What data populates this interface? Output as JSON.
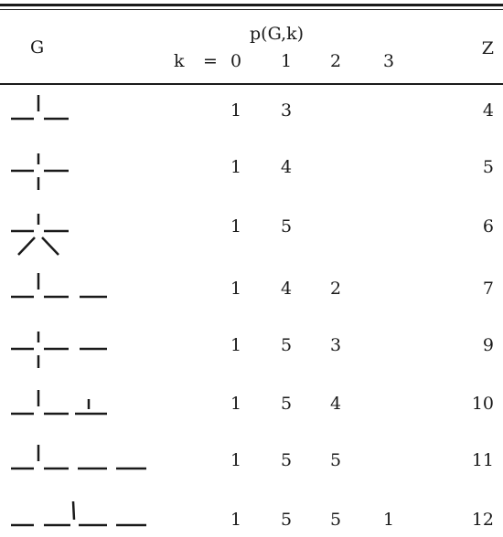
{
  "header": {
    "col_graph": "G",
    "col_poly": "p(G,k)",
    "k_label": "k",
    "equals": "=",
    "k_values": [
      "0",
      "1",
      "2",
      "3"
    ],
    "col_z": "Z"
  },
  "rows": [
    {
      "p": [
        "1",
        "3",
        "",
        ""
      ],
      "z": "4"
    },
    {
      "p": [
        "1",
        "4",
        "",
        ""
      ],
      "z": "5"
    },
    {
      "p": [
        "1",
        "5",
        "",
        ""
      ],
      "z": "6"
    },
    {
      "p": [
        "1",
        "4",
        "2",
        ""
      ],
      "z": "7"
    },
    {
      "p": [
        "1",
        "5",
        "3",
        ""
      ],
      "z": "9"
    },
    {
      "p": [
        "1",
        "5",
        "4",
        ""
      ],
      "z": "10"
    },
    {
      "p": [
        "1",
        "5",
        "5",
        ""
      ],
      "z": "11"
    },
    {
      "p": [
        "1",
        "5",
        "5",
        "1"
      ],
      "z": "12"
    }
  ]
}
